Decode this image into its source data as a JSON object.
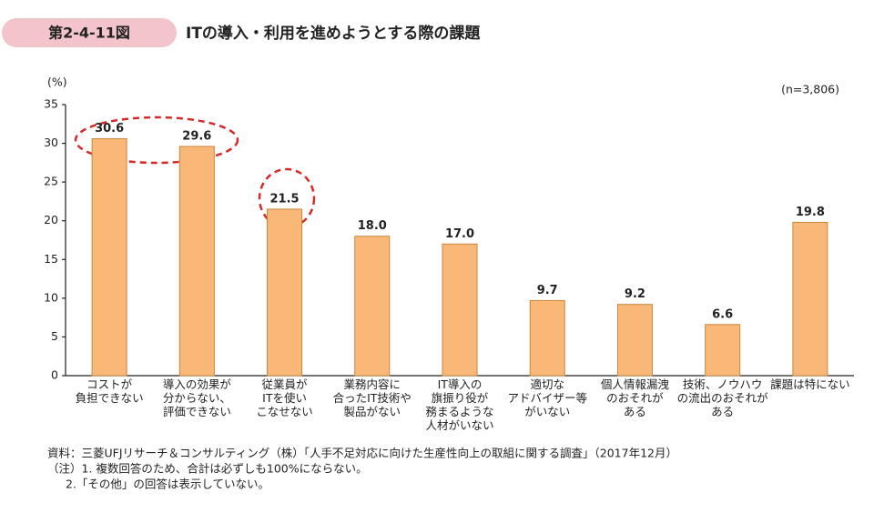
{
  "chart_data": {
    "type": "bar",
    "figure_number": "第2-4-11図",
    "title": "ITの導入・利用を進めようとする際の課題",
    "y_label": "(%)",
    "sample_size": "(n=3,806)",
    "categories": [
      "コストが\n負担できない",
      "導入の効果が\n分からない、\n評価できない",
      "従業員が\nITを使い\nこなせない",
      "業務内容に\n合ったIT技術や\n製品がない",
      "IT導入の\n旗振り役が\n務まるような\n人材がいない",
      "適切な\nアドバイザー等\nがいない",
      "個人情報漏洩\nのおそれが\nある",
      "技術、ノウハウ\nの流出のおそれが\nある",
      "課題は特にない"
    ],
    "values": [
      30.6,
      29.6,
      21.5,
      18.0,
      17.0,
      9.7,
      9.2,
      6.6,
      19.8
    ],
    "value_labels": [
      "30.6",
      "29.6",
      "21.5",
      "18.0",
      "17.0",
      "9.7",
      "9.2",
      "6.6",
      "19.8"
    ],
    "color": "#f9b877",
    "edge_color": "#c8863c",
    "ylim": [
      0,
      35
    ],
    "yticks": [
      0,
      5,
      10,
      15,
      20,
      25,
      30,
      35
    ],
    "grid": false,
    "notes": [
      "資料：三菱UFJリサーチ＆コンサルティング（株）「人手不足対応に向けた生産性向上の取組に関する調査」（2017年12月）",
      "（注）1. 複数回答のため、合計は必ずしも100%にならない。",
      "2.「その他」の回答は表示していない。"
    ]
  }
}
